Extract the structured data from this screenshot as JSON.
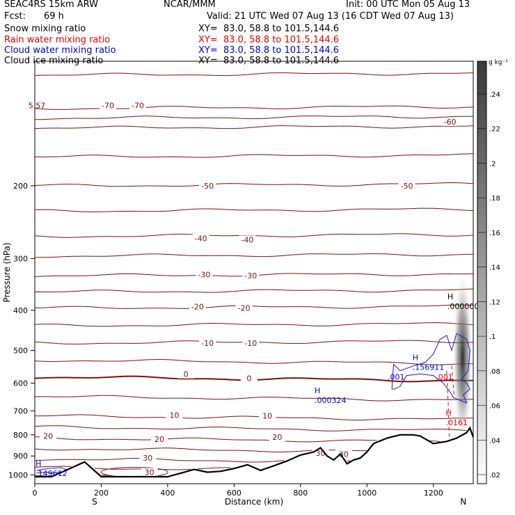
{
  "header": {
    "model": "SEAC4RS 15km ARW",
    "org": "NCAR/MMM",
    "init": "Init: 00 UTC Mon 05 Aug 13",
    "fcst_label": "Fcst:",
    "fcst_value": "69 h",
    "valid": "Valid: 21 UTC Wed 07 Aug 13 (16 CDT Wed 07 Aug 13)"
  },
  "fields": [
    {
      "name": "Snow mixing ratio",
      "xy": "XY=  83.0, 58.8 to 101.5,144.6",
      "color": "#000000"
    },
    {
      "name": "Rain water mixing ratio",
      "xy": "XY=  83.0, 58.8 to 101.5,144.6",
      "color": "#e00000"
    },
    {
      "name": "Cloud water mixing ratio",
      "xy": "XY=  83.0, 58.8 to 101.5,144.6",
      "color": "#0000cc"
    },
    {
      "name": "Cloud ice mixing ratio",
      "xy": "XY=  83.0, 58.8 to 101.5,144.6",
      "color": "#000000"
    }
  ],
  "chart_data": {
    "type": "cross-section",
    "xlabel": "Distance (km)",
    "ylabel": "Pressure (hPa)",
    "xlim": [
      0,
      1320
    ],
    "ylim": [
      1050,
      100
    ],
    "y_scale": "log",
    "x_ticks": [
      0,
      200,
      400,
      600,
      800,
      1000,
      1200
    ],
    "y_ticks": [
      200,
      300,
      400,
      500,
      600,
      700,
      800,
      900,
      1000
    ],
    "x_end_labels": {
      "left": "S",
      "right": "N"
    },
    "temperature_contours": [
      {
        "label": "-70",
        "p": 130
      },
      {
        "label": "-60",
        "p": 145
      },
      {
        "label": "-50",
        "p": 200
      },
      {
        "label": "-40",
        "p": 265
      },
      {
        "label": "-30",
        "p": 330
      },
      {
        "label": "-20",
        "p": 395
      },
      {
        "label": "-10",
        "p": 480
      },
      {
        "label": "0",
        "p": 580
      },
      {
        "label": "10",
        "p": 720
      },
      {
        "label": "20",
        "p": 815
      },
      {
        "label": "30",
        "p": 915
      }
    ],
    "contour_annotations": [
      {
        "text": "-70",
        "x": 220,
        "p": 128
      },
      {
        "text": "-70",
        "x": 310,
        "p": 128
      },
      {
        "text": "-60",
        "x": 1250,
        "p": 140
      },
      {
        "text": "-50",
        "x": 520,
        "p": 200
      },
      {
        "text": "-50",
        "x": 1120,
        "p": 200
      },
      {
        "text": "-40",
        "x": 500,
        "p": 268
      },
      {
        "text": "-40",
        "x": 640,
        "p": 270
      },
      {
        "text": "-30",
        "x": 510,
        "p": 328
      },
      {
        "text": "-30",
        "x": 650,
        "p": 330
      },
      {
        "text": "-20",
        "x": 490,
        "p": 392
      },
      {
        "text": "-20",
        "x": 630,
        "p": 395
      },
      {
        "text": "-10",
        "x": 520,
        "p": 480
      },
      {
        "text": "-10",
        "x": 650,
        "p": 480
      },
      {
        "text": "0",
        "x": 455,
        "p": 571
      },
      {
        "text": "0",
        "x": 645,
        "p": 584
      },
      {
        "text": "10",
        "x": 420,
        "p": 717
      },
      {
        "text": "10",
        "x": 700,
        "p": 720
      },
      {
        "text": "20",
        "x": 40,
        "p": 805
      },
      {
        "text": "20",
        "x": 375,
        "p": 820
      },
      {
        "text": "20",
        "x": 730,
        "p": 810
      },
      {
        "text": "30",
        "x": 340,
        "p": 910
      },
      {
        "text": "30",
        "x": 860,
        "p": 885
      },
      {
        "text": "30",
        "x": 930,
        "p": 890
      },
      {
        "text": "30",
        "x": 345,
        "p": 985
      }
    ],
    "extrema_labels": [
      {
        "mark": "H",
        "value": ".000000",
        "x": 1280,
        "p": 385,
        "color": "#000000"
      },
      {
        "mark": "H",
        "value": ".156911",
        "x": 1175,
        "p": 540,
        "color": "#0000cc"
      },
      {
        "mark": "",
        "value": ".001",
        "x": 1100,
        "p": 570,
        "color": "#0000cc"
      },
      {
        "mark": "",
        "value": ".001",
        "x": 1245,
        "p": 570,
        "color": "#e00000"
      },
      {
        "mark": "H",
        "value": ".000324",
        "x": 880,
        "p": 650,
        "color": "#0000cc"
      },
      {
        "mark": "H",
        "value": ".0161",
        "x": 1275,
        "p": 735,
        "color": "#e00000"
      },
      {
        "mark": "H",
        "value": ".149612",
        "x": 40,
        "p": 975,
        "color": "#0000cc"
      }
    ],
    "edge_label": {
      "text": "5.57",
      "x": 10,
      "p": 128
    },
    "colorbar": {
      "units": "g kg⁻¹",
      "ticks": [
        ".24",
        ".22",
        ".2",
        ".18",
        ".16",
        ".14",
        ".12",
        ".1",
        ".08",
        ".06",
        ".04",
        ".02"
      ]
    },
    "terrain": [
      [
        0,
        1010
      ],
      [
        50,
        1010
      ],
      [
        100,
        970
      ],
      [
        150,
        930
      ],
      [
        200,
        1010
      ],
      [
        300,
        1010
      ],
      [
        400,
        1010
      ],
      [
        440,
        990
      ],
      [
        480,
        970
      ],
      [
        520,
        985
      ],
      [
        560,
        980
      ],
      [
        600,
        965
      ],
      [
        640,
        945
      ],
      [
        680,
        975
      ],
      [
        720,
        950
      ],
      [
        760,
        925
      ],
      [
        800,
        895
      ],
      [
        840,
        880
      ],
      [
        860,
        860
      ],
      [
        880,
        900
      ],
      [
        900,
        920
      ],
      [
        920,
        890
      ],
      [
        940,
        940
      ],
      [
        960,
        920
      ],
      [
        980,
        910
      ],
      [
        1000,
        880
      ],
      [
        1020,
        840
      ],
      [
        1060,
        815
      ],
      [
        1100,
        800
      ],
      [
        1140,
        800
      ],
      [
        1160,
        805
      ],
      [
        1200,
        840
      ],
      [
        1240,
        830
      ],
      [
        1270,
        815
      ],
      [
        1300,
        790
      ],
      [
        1310,
        770
      ],
      [
        1320,
        810
      ]
    ]
  }
}
